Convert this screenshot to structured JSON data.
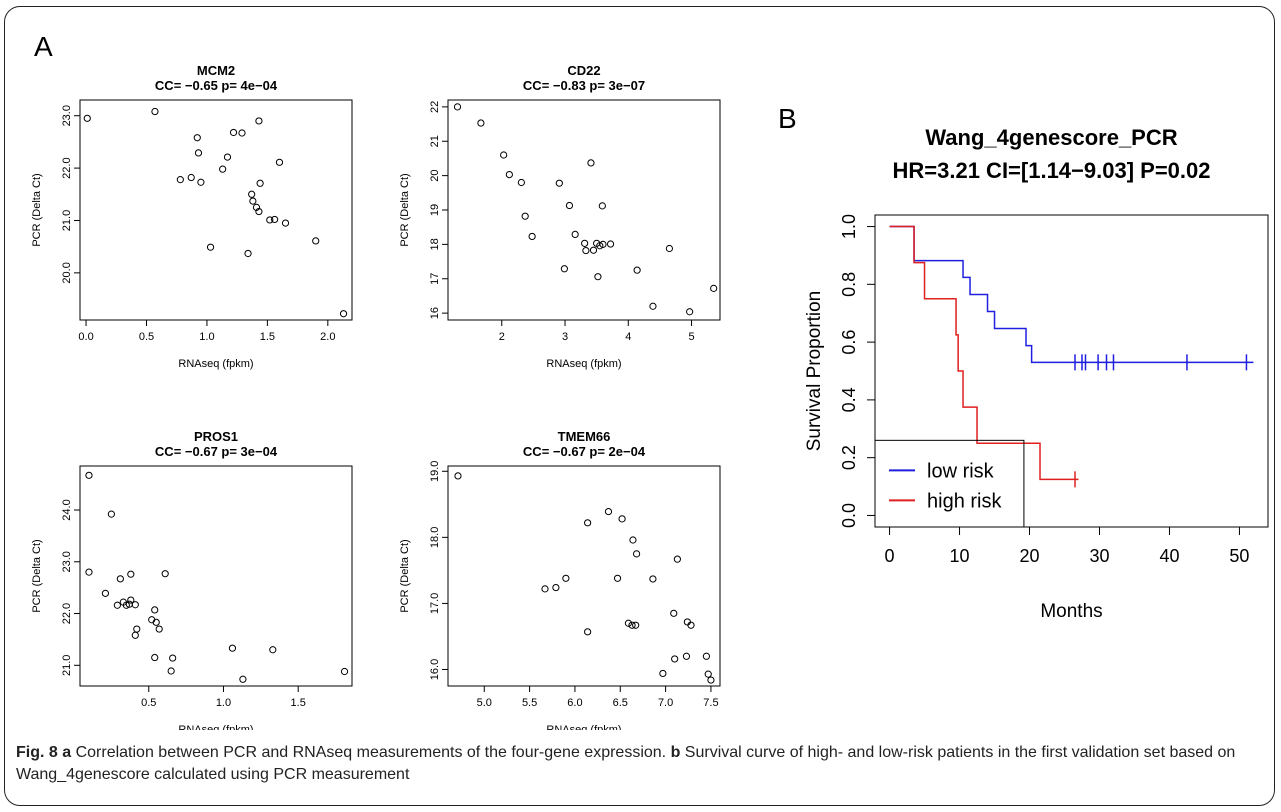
{
  "panel_labels": {
    "a": "A",
    "b": "B"
  },
  "caption": {
    "fig_label": "Fig. 8",
    "a_label": "a",
    "a_text": " Correlation between PCR and RNAseq measurements of the four-gene expression. ",
    "b_label": "b",
    "b_text": " Survival curve of high- and low-risk patients in the first validation set based on Wang_4genescore calculated using PCR measurement"
  },
  "chart_data": [
    {
      "type": "scatter",
      "title": "MCM2",
      "subtitle": "CC= −0.65 p= 4e−04",
      "xlabel": "RNAseq (fpkm)",
      "ylabel": "PCR (Delta Ct)",
      "xlim": [
        -0.05,
        2.2
      ],
      "ylim": [
        19.1,
        23.3
      ],
      "xticks": [
        0.0,
        0.5,
        1.0,
        1.5,
        2.0
      ],
      "yticks": [
        20,
        21,
        22,
        23
      ],
      "tick_decimals": 1,
      "x": [
        0.01,
        0.57,
        0.92,
        0.93,
        0.95,
        0.78,
        0.87,
        1.13,
        1.17,
        1.22,
        1.29,
        1.43,
        1.44,
        1.37,
        1.38,
        1.41,
        1.43,
        1.52,
        1.56,
        1.6,
        1.65,
        1.03,
        1.34,
        1.9,
        2.13
      ],
      "y": [
        22.95,
        23.08,
        22.58,
        22.29,
        21.73,
        21.78,
        21.82,
        21.98,
        22.21,
        22.68,
        22.67,
        22.9,
        21.71,
        21.5,
        21.37,
        21.25,
        21.17,
        21.01,
        21.02,
        22.11,
        20.95,
        20.49,
        20.37,
        20.61,
        19.22
      ]
    },
    {
      "type": "scatter",
      "title": "CD22",
      "subtitle": "CC= −0.83 p= 3e−07",
      "xlabel": "RNAseq (fpkm)",
      "ylabel": "PCR (Delta Ct)",
      "xlim": [
        1.15,
        5.45
      ],
      "ylim": [
        15.8,
        22.2
      ],
      "xticks": [
        2,
        3,
        4,
        5
      ],
      "yticks": [
        16,
        17,
        18,
        19,
        20,
        21,
        22
      ],
      "tick_decimals": 0,
      "x": [
        1.3,
        1.67,
        2.03,
        2.12,
        2.31,
        2.37,
        2.48,
        2.91,
        2.99,
        3.07,
        3.16,
        3.31,
        3.33,
        3.41,
        3.45,
        3.5,
        3.55,
        3.59,
        3.6,
        3.72,
        3.52,
        4.14,
        4.39,
        4.65,
        4.97,
        5.35
      ],
      "y": [
        22.0,
        21.53,
        20.6,
        20.03,
        19.8,
        18.82,
        18.23,
        19.78,
        17.29,
        19.13,
        18.29,
        18.03,
        17.82,
        20.37,
        17.83,
        18.03,
        17.96,
        19.12,
        18.0,
        18.01,
        17.06,
        17.25,
        16.2,
        17.88,
        16.04,
        16.72
      ]
    },
    {
      "type": "scatter",
      "title": "PROS1",
      "subtitle": "CC= −0.67 p= 3e−04",
      "xlabel": "RNAseq (fpkm)",
      "ylabel": "PCR (Delta Ct)",
      "xlim": [
        0.04,
        1.86
      ],
      "ylim": [
        20.6,
        24.85
      ],
      "xticks": [
        0.5,
        1.0,
        1.5
      ],
      "yticks": [
        21,
        22,
        23,
        24
      ],
      "tick_decimals": 1,
      "x": [
        0.1,
        0.25,
        0.1,
        0.21,
        0.31,
        0.38,
        0.29,
        0.33,
        0.35,
        0.38,
        0.37,
        0.41,
        0.42,
        0.41,
        0.54,
        0.52,
        0.55,
        0.57,
        0.61,
        0.65,
        0.66,
        0.54,
        1.06,
        1.13,
        1.33,
        1.81
      ],
      "y": [
        24.67,
        23.92,
        22.8,
        22.39,
        22.67,
        22.76,
        22.16,
        22.22,
        22.16,
        22.26,
        22.18,
        22.17,
        21.7,
        21.58,
        22.07,
        21.88,
        21.83,
        21.7,
        22.77,
        20.89,
        21.14,
        21.15,
        21.33,
        20.73,
        21.3,
        20.88
      ]
    },
    {
      "type": "scatter",
      "title": "TMEM66",
      "subtitle": "CC= −0.67 p= 2e−04",
      "xlabel": "RNAseq (fpkm)",
      "ylabel": "PCR (Delta Ct)",
      "xlim": [
        4.6,
        7.6
      ],
      "ylim": [
        15.75,
        19.08
      ],
      "xticks": [
        5.0,
        5.5,
        6.0,
        6.5,
        7.0,
        7.5
      ],
      "yticks": [
        16.0,
        17.0,
        18.0,
        19.0
      ],
      "tick_decimals": 1,
      "x": [
        4.71,
        5.67,
        5.79,
        5.9,
        6.14,
        6.37,
        6.52,
        6.64,
        6.68,
        6.47,
        6.86,
        6.14,
        6.59,
        6.63,
        6.67,
        6.97,
        7.09,
        7.13,
        7.24,
        7.28,
        7.23,
        7.1,
        7.45,
        7.47,
        7.5
      ],
      "y": [
        18.93,
        17.22,
        17.24,
        17.38,
        18.22,
        18.39,
        18.28,
        17.96,
        17.75,
        17.38,
        17.37,
        16.57,
        16.7,
        16.67,
        16.67,
        15.94,
        16.85,
        17.67,
        16.72,
        16.67,
        16.2,
        16.16,
        16.2,
        15.93,
        15.84
      ]
    },
    {
      "type": "line",
      "chart_kind": "kaplan-meier",
      "title": "Wang_4genescore_PCR",
      "subtitle": "HR=3.21 CI=[1.14−9.03] P=0.02",
      "xlabel": "Months",
      "ylabel": "Survival Proportion",
      "xlim": [
        0,
        52
      ],
      "ylim": [
        0,
        1.0
      ],
      "xticks": [
        0,
        10,
        20,
        30,
        40,
        50
      ],
      "yticks": [
        0.0,
        0.2,
        0.4,
        0.6,
        0.8,
        1.0
      ],
      "legend_position": "bottom-left",
      "series": [
        {
          "name": "low risk",
          "color": "#1f1fe0",
          "steps": [
            [
              0,
              1.0
            ],
            [
              3.5,
              0.94
            ],
            [
              3.5,
              0.882
            ],
            [
              10.5,
              0.824
            ],
            [
              11.5,
              0.765
            ],
            [
              14,
              0.706
            ],
            [
              15,
              0.647
            ],
            [
              19.5,
              0.588
            ],
            [
              20.3,
              0.53
            ],
            [
              52,
              0.53
            ]
          ],
          "censor_times": [
            26.5,
            27.5,
            28,
            29.8,
            31,
            32,
            42.5,
            51
          ],
          "censor_value": 0.53
        },
        {
          "name": "high risk",
          "color": "#e01f1f",
          "steps": [
            [
              0,
              1.0
            ],
            [
              3.5,
              0.875
            ],
            [
              5,
              0.75
            ],
            [
              9.5,
              0.625
            ],
            [
              9.8,
              0.5
            ],
            [
              10.5,
              0.375
            ],
            [
              12.5,
              0.25
            ],
            [
              21.5,
              0.125
            ],
            [
              27,
              0.125
            ]
          ],
          "censor_times": [
            26.5
          ],
          "censor_value": 0.125
        }
      ]
    }
  ]
}
